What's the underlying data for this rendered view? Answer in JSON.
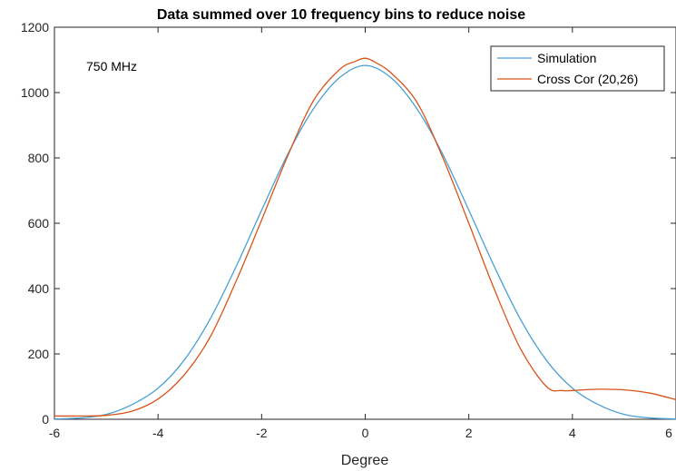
{
  "chart_data": {
    "type": "line",
    "title": "Data summed over 10 frequency bins to reduce noise",
    "xlabel": "Degree",
    "ylabel": "",
    "xlim": [
      -6,
      6
    ],
    "ylim": [
      0,
      1200
    ],
    "xticks": [
      "-6",
      "-4",
      "-2",
      "0",
      "2",
      "4",
      "6"
    ],
    "yticks": [
      "0",
      "200",
      "400",
      "600",
      "800",
      "1000",
      "1200"
    ],
    "grid": false,
    "legend_position": "top-right",
    "annotation": "750 MHz",
    "series": [
      {
        "name": "Simulation",
        "color": "#4a9fd4",
        "x": [
          -6.0,
          -5.5,
          -5.0,
          -4.5,
          -4.0,
          -3.5,
          -3.0,
          -2.5,
          -2.0,
          -1.5,
          -1.0,
          -0.5,
          0.0,
          0.5,
          1.0,
          1.5,
          2.0,
          2.5,
          3.0,
          3.5,
          4.0,
          4.5,
          5.0,
          5.5,
          6.0
        ],
        "y": [
          1,
          4,
          15,
          45,
          95,
          180,
          305,
          465,
          640,
          810,
          950,
          1045,
          1083,
          1045,
          950,
          810,
          640,
          465,
          305,
          180,
          95,
          45,
          15,
          4,
          1
        ]
      },
      {
        "name": "Cross Cor (20,26)",
        "color": "#d95319",
        "x": [
          -6.0,
          -5.5,
          -5.0,
          -4.5,
          -4.0,
          -3.5,
          -3.0,
          -2.5,
          -2.0,
          -1.5,
          -1.0,
          -0.5,
          -0.2,
          0.0,
          0.2,
          0.5,
          1.0,
          1.5,
          2.0,
          2.5,
          3.0,
          3.5,
          3.8,
          4.0,
          4.5,
          5.0,
          5.5,
          6.0
        ],
        "y": [
          10,
          10,
          12,
          25,
          62,
          135,
          250,
          420,
          610,
          805,
          975,
          1070,
          1095,
          1105,
          1092,
          1060,
          970,
          800,
          600,
          395,
          215,
          100,
          88,
          88,
          92,
          90,
          80,
          60
        ]
      }
    ]
  }
}
